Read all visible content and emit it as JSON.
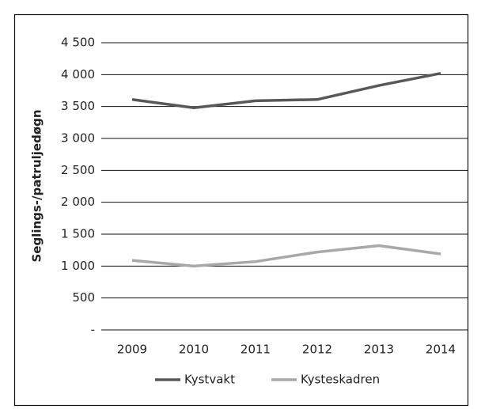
{
  "chart_data": {
    "type": "line",
    "y_label": "Seglings-/patruljedøgn",
    "categories": [
      "2009",
      "2010",
      "2011",
      "2012",
      "2013",
      "2014"
    ],
    "series": [
      {
        "name": "Kystvakt",
        "color": "#585858",
        "values": [
          3610,
          3480,
          3590,
          3610,
          3830,
          4020
        ]
      },
      {
        "name": "Kysteskadren",
        "color": "#a8a8a8",
        "values": [
          1090,
          1000,
          1070,
          1220,
          1320,
          1190
        ]
      }
    ],
    "ylim": [
      0,
      4500
    ],
    "yticks": [
      {
        "value": 0,
        "label": "-"
      },
      500,
      {
        "value": 1000,
        "label": "1 000"
      },
      {
        "value": 1500,
        "label": "1 500"
      },
      {
        "value": 2000,
        "label": "2 000"
      },
      {
        "value": 2500,
        "label": "2 500"
      },
      {
        "value": 3000,
        "label": "3 000"
      },
      {
        "value": 3500,
        "label": "3 500"
      },
      {
        "value": 4000,
        "label": "4 000"
      },
      {
        "value": 4500,
        "label": "4 500"
      }
    ],
    "grid": true,
    "legend": "bottom"
  }
}
